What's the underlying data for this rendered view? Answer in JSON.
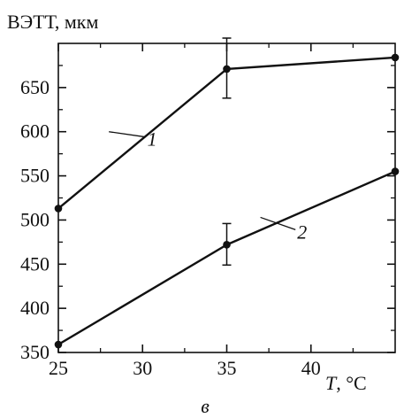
{
  "chart_data": {
    "type": "line",
    "ylabel": "ВЭТТ, мкм",
    "xlabel_symbol": "T",
    "xlabel_unit": ", °C",
    "subfigure_label": "в",
    "x_ticks": [
      25,
      30,
      35,
      40
    ],
    "y_ticks": [
      350,
      400,
      450,
      500,
      550,
      600,
      650
    ],
    "xlim": [
      25,
      45
    ],
    "ylim": [
      350,
      700
    ],
    "grid": false,
    "series": [
      {
        "name": "1",
        "x": [
          25,
          35,
          45
        ],
        "y": [
          513,
          671,
          684
        ],
        "error_bars": [
          {
            "x": 35,
            "low": 638,
            "high": 706
          }
        ]
      },
      {
        "name": "2",
        "x": [
          25,
          35,
          45
        ],
        "y": [
          359,
          472,
          555
        ],
        "error_bars": [
          {
            "x": 35,
            "low": 449,
            "high": 496
          }
        ]
      }
    ]
  }
}
